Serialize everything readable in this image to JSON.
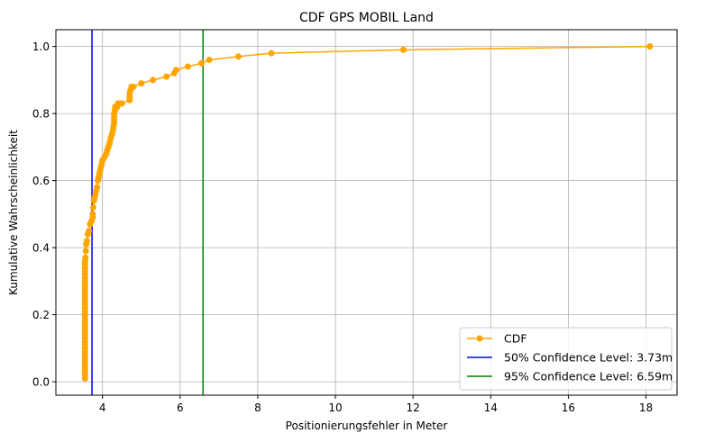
{
  "chart_data": {
    "type": "line",
    "title": "CDF GPS MOBIL Land",
    "xlabel": "Positionierungsfehler in Meter",
    "ylabel": "Kumulative Wahrscheinlichkeit",
    "xlim": [
      2.8,
      18.8
    ],
    "ylim": [
      -0.04,
      1.05
    ],
    "xticks": [
      4,
      6,
      8,
      10,
      12,
      14,
      16,
      18
    ],
    "yticks": [
      0.0,
      0.2,
      0.4,
      0.6,
      0.8,
      1.0
    ],
    "xtick_labels": [
      "4",
      "6",
      "8",
      "10",
      "12",
      "14",
      "16",
      "18"
    ],
    "ytick_labels": [
      "0.0",
      "0.2",
      "0.4",
      "0.6",
      "0.8",
      "1.0"
    ],
    "grid": true,
    "legend_position": "lower-right",
    "series": [
      {
        "name": "CDF",
        "color": "#ffa500",
        "marker": "circle",
        "x": [
          3.55,
          3.55,
          3.55,
          3.55,
          3.55,
          3.55,
          3.55,
          3.55,
          3.55,
          3.55,
          3.55,
          3.55,
          3.55,
          3.55,
          3.55,
          3.55,
          3.55,
          3.55,
          3.55,
          3.55,
          3.55,
          3.55,
          3.55,
          3.55,
          3.55,
          3.55,
          3.55,
          3.55,
          3.55,
          3.55,
          3.55,
          3.55,
          3.55,
          3.55,
          3.55,
          3.55,
          3.56,
          3.57,
          3.58,
          3.6,
          3.62,
          3.65,
          3.68,
          3.72,
          3.75,
          3.75,
          3.76,
          3.78,
          3.8,
          3.82,
          3.84,
          3.86,
          3.88,
          3.9,
          3.92,
          3.94,
          3.96,
          3.98,
          4.0,
          4.05,
          4.1,
          4.12,
          4.15,
          4.18,
          4.2,
          4.22,
          4.25,
          4.27,
          4.28,
          4.3,
          4.3,
          4.3,
          4.3,
          4.32,
          4.32,
          4.33,
          4.35,
          4.35,
          4.38,
          4.4,
          4.45,
          4.5,
          4.7,
          4.7,
          4.7,
          4.72,
          4.75,
          4.8,
          5.0,
          5.3,
          5.65,
          5.85,
          5.9,
          6.2,
          6.55,
          6.75,
          7.5,
          8.35,
          11.75,
          18.1
        ],
        "y": [
          0.01,
          0.02,
          0.03,
          0.04,
          0.05,
          0.06,
          0.07,
          0.08,
          0.09,
          0.1,
          0.11,
          0.12,
          0.13,
          0.14,
          0.15,
          0.16,
          0.17,
          0.18,
          0.19,
          0.2,
          0.21,
          0.22,
          0.23,
          0.24,
          0.25,
          0.26,
          0.27,
          0.28,
          0.29,
          0.3,
          0.31,
          0.32,
          0.33,
          0.34,
          0.35,
          0.36,
          0.37,
          0.39,
          0.41,
          0.42,
          0.44,
          0.45,
          0.47,
          0.48,
          0.49,
          0.5,
          0.52,
          0.54,
          0.55,
          0.56,
          0.57,
          0.58,
          0.6,
          0.61,
          0.62,
          0.63,
          0.64,
          0.65,
          0.66,
          0.67,
          0.68,
          0.69,
          0.7,
          0.71,
          0.72,
          0.73,
          0.74,
          0.75,
          0.76,
          0.77,
          0.78,
          0.79,
          0.8,
          0.81,
          0.81,
          0.82,
          0.82,
          0.82,
          0.82,
          0.83,
          0.83,
          0.83,
          0.84,
          0.85,
          0.86,
          0.87,
          0.88,
          0.88,
          0.89,
          0.9,
          0.91,
          0.92,
          0.93,
          0.94,
          0.95,
          0.96,
          0.97,
          0.98,
          0.99,
          1.0
        ]
      }
    ],
    "vlines": [
      {
        "name": "50% Confidence Level: 3.73m",
        "x": 3.73,
        "color": "#0000ff"
      },
      {
        "name": "95% Confidence Level: 6.59m",
        "x": 6.59,
        "color": "#008000"
      }
    ]
  }
}
